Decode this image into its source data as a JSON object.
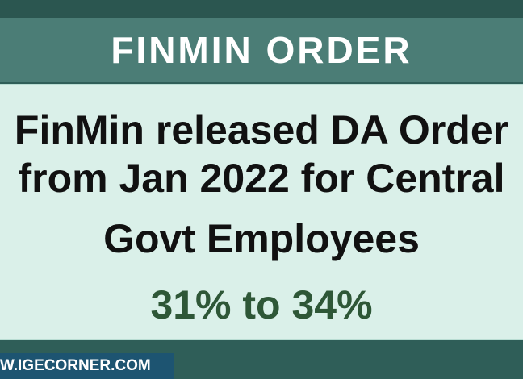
{
  "header": {
    "title": "FINMIN ORDER"
  },
  "body": {
    "lines": [
      "FinMin released DA Order",
      "from Jan 2022 for Central",
      "Govt Employees"
    ],
    "highlight": "31% to 34%"
  },
  "footer": {
    "website": "WWW.IGECORNER.COM"
  }
}
